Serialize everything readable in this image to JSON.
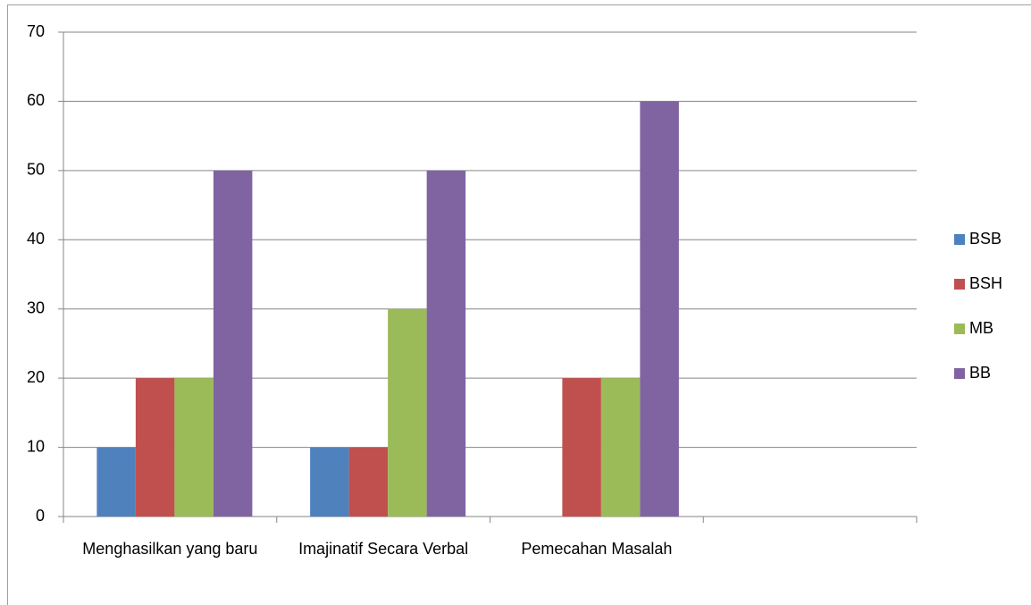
{
  "chart_data": {
    "type": "bar",
    "categories": [
      "Menghasilkan yang baru",
      "Imajinatif Secara Verbal",
      "Pemecahan Masalah",
      null
    ],
    "series": [
      {
        "name": "BSB",
        "color": "#4f81bd",
        "values": [
          10,
          10,
          0,
          null
        ]
      },
      {
        "name": "BSH",
        "color": "#c0504d",
        "values": [
          20,
          10,
          20,
          null
        ]
      },
      {
        "name": "MB",
        "color": "#9bbb59",
        "values": [
          20,
          30,
          20,
          null
        ]
      },
      {
        "name": "BB",
        "color": "#8064a2",
        "values": [
          50,
          50,
          60,
          null
        ]
      }
    ],
    "ylim": [
      0,
      70
    ],
    "yticks": [
      0,
      10,
      20,
      30,
      40,
      50,
      60,
      70
    ],
    "grid": true,
    "legend": "right"
  }
}
